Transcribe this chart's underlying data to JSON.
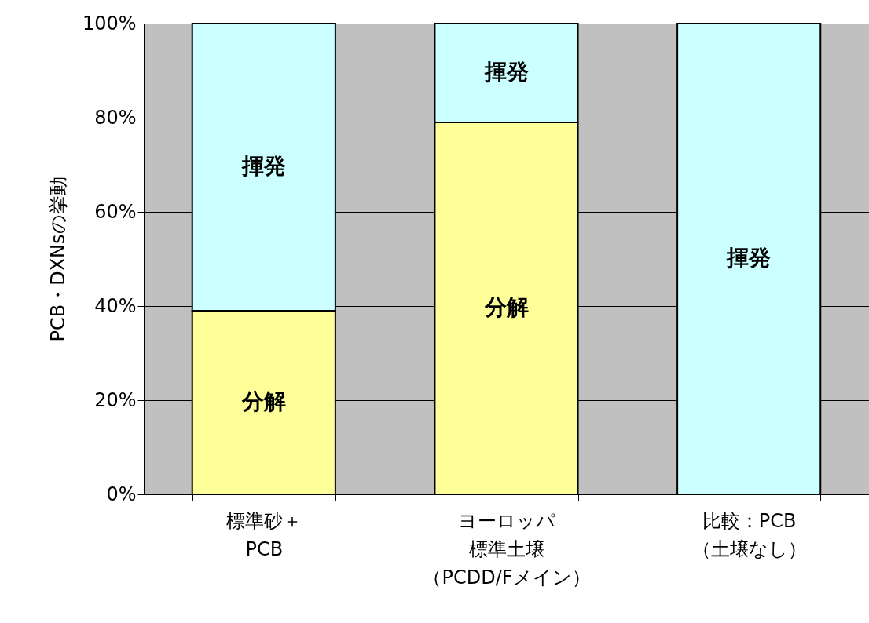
{
  "chart_data": {
    "type": "bar",
    "stacked": true,
    "ylabel": "PCB・DXNsの挙動",
    "categories": [
      "標準砂＋\nPCB",
      "ヨーロッパ標準土壌（PCDD/Fメイン）",
      "比較：PCB\n（土壌なし）"
    ],
    "series": [
      {
        "name": "分解",
        "color": "#ffff99",
        "values": [
          39,
          79,
          0
        ]
      },
      {
        "name": "揮発",
        "color": "#ccffff",
        "values": [
          61,
          21,
          100
        ]
      }
    ],
    "ylim": [
      0,
      100
    ],
    "yticks": [
      {
        "value": 0,
        "label": "0%"
      },
      {
        "value": 20,
        "label": "20%"
      },
      {
        "value": 40,
        "label": "40%"
      },
      {
        "value": 60,
        "label": "60%"
      },
      {
        "value": 80,
        "label": "80%"
      },
      {
        "value": 100,
        "label": "100%"
      }
    ],
    "grid": "y",
    "legend": false
  }
}
